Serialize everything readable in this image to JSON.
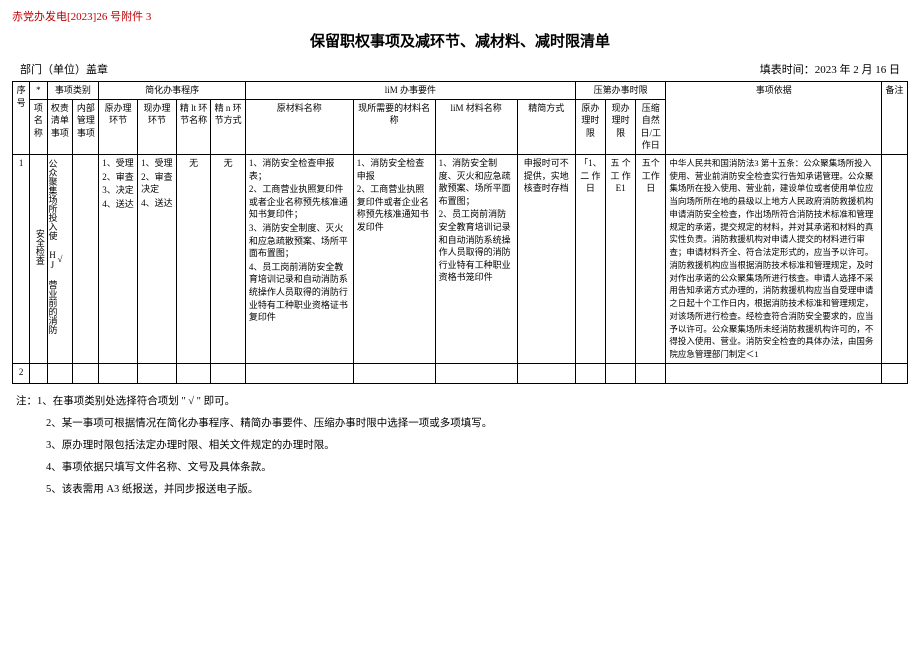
{
  "doc_ref": "赤党办发电[2023]26 号附件 3",
  "title": "保留职权事项及减环节、减材料、减时限清单",
  "dept_label": "部门（单位）盖章",
  "fill_date_label": "填表时间：2023 年 2 月 16 日",
  "headers": {
    "star": "*",
    "category": "事项类别",
    "simplify_proc": "简化办事程序",
    "req_group": "liM 办事要件",
    "time_group": "压第办事时限",
    "basis": "事项依据",
    "remark": "备注",
    "seq": "序号",
    "item_name": "项名称",
    "auth_list": "权责清单事项",
    "internal": "内部管理事项",
    "orig_step": "原办理环节",
    "now_step": "现办理环节",
    "cut_step_name": "精 lt 环节名称",
    "cut_step_way": "精 n 环节方式",
    "orig_mat": "原材料名称",
    "now_mat": "现所需要的材料名称",
    "mat_name": "liM 材料名称",
    "reduce_way": "精简方式",
    "orig_time": "原办理时限",
    "now_time": "现办理时限",
    "compress_days": "压缩自然日/工作日"
  },
  "row1": {
    "seq": "1",
    "name": "公众聚集场所投入使 HJ 营业前的消防安全检查",
    "auth": "√",
    "internal": "",
    "orig_step": [
      "1、受理",
      "2、审查",
      "3、决定",
      "4、送达"
    ],
    "now_step": [
      "1、受理",
      "2、审查决定",
      "4、送达"
    ],
    "cut_step_name": "无",
    "cut_step_way": "无",
    "orig_mat": [
      "1、消防安全检查申报表；",
      "2、工商营业执照复印件或者企业名称预先核准通知书复印件；",
      "3、消防安全制度、灭火和应急疏散预案、场所平面布置图；",
      "4、员工岗前消防安全教育培训记录和自动消防系统操作人员取得的消防行业特有工种职业资格证书复印件"
    ],
    "now_mat": [
      "1、消防安全检查申报",
      "2、工商营业执照复印件或者企业名称预先核准通知书发印件"
    ],
    "mat_name": [
      "1、消防安全制度、灭火和应急疏散预案、场所平面布置图；",
      "2、员工岗前消防安全教育培训记录和自动消防系统操作人员取得的消防行业特有工种职业资格书笼印件"
    ],
    "reduce_way": "申报时可不提供，实地核查时存档",
    "orig_time": "「1、二 作日",
    "now_time": "五 个 工 作 E1",
    "compress": "五个工作日",
    "basis": "中华人民共和国消防法3 第十五条：公众聚集场所投入使用、营业前消防安全检查实行告知承诺管理。公众聚集场所在投入使用、营业前，建设单位或者使用单位应当向场所所在地的县级以上地方人民政府消防救援机构申请消防安全检查，作出场所符合消防技术标准和管理规定的承诺，提交规定的材料，并对其承诺和材料的真实性负责。消防救援机构对申请人提交的材料进行审查；申请材料齐全、符合法定形式的，应当予以许可。消防救援机构应当根据消防技术标准和管理规定，及时对作出承诺的公众聚集场所进行核查。申请人选择不采用告知承诺方式办理的，消防救援机构应当自受理申请之日起十个工作日内，根据消防技术标准和管理规定，对该场所进行检查。经检查符合消防安全要求的，应当予以许可。公众聚集场所未经消防救援机构许可的，不得投入使用、营业。消防安全检查的具体办法，由国务院应急管理部门制定＜1"
  },
  "row2_seq": "2",
  "notes": {
    "prefix": "注：",
    "n1": "1、在事项类别处选择符合项划 \" √ \" 即可。",
    "n2": "2、某一事项可根据情况在简化办事程序、精简办事要件、压缩办事时限中选择一项或多项填写。",
    "n3": "3、原办理时限包括法定办理时限、相关文件规定的办理时限。",
    "n4": "4、事项依据只填写文件名称、文号及具体条款。",
    "n5": "5、该表需用 A3 纸报送，并同步报送电子版。"
  }
}
